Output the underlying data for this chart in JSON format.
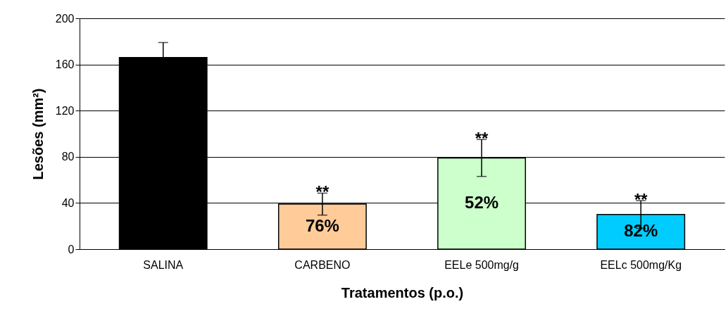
{
  "chart_data": {
    "type": "bar",
    "xlabel": "Tratamentos (p.o.)",
    "ylabel": "Lesões (mm²)",
    "categories": [
      "SALINA",
      "CARBENO",
      "EELe 500mg/g",
      "EELc 500mg/Kg"
    ],
    "values": [
      166,
      39,
      79,
      30
    ],
    "colors": [
      "#000000",
      "#ffcc99",
      "#ccffcc",
      "#00ccff"
    ],
    "errors": [
      13,
      9.5,
      16,
      12
    ],
    "ylim": [
      0,
      200
    ],
    "yticks": [
      0,
      40,
      80,
      120,
      160,
      200
    ],
    "grid": "y",
    "annotations": [
      {
        "text": "**",
        "x": "CARBENO",
        "y": 39
      },
      {
        "text": "**",
        "x": "EELe 500mg/g",
        "y": 79
      },
      {
        "text": "**",
        "x": "EELc 500mg/Kg",
        "y": 30
      },
      {
        "text": "76%",
        "x": "CARBENO",
        "y": 39
      },
      {
        "text": "52%",
        "x": "EELe 500mg/g",
        "y": 79
      },
      {
        "text": "82%",
        "x": "EELc 500mg/Kg",
        "y": 30
      }
    ]
  }
}
